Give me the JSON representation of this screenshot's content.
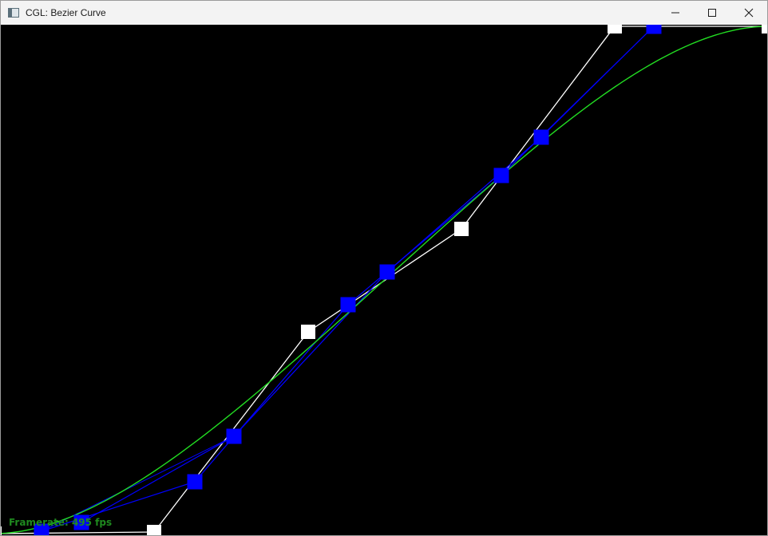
{
  "window": {
    "title": "CGL: Bezier Curve",
    "icon": "app-window-icon",
    "buttons": [
      "minimize-icon",
      "maximize-icon",
      "close-icon"
    ]
  },
  "scene": {
    "background": "#000000",
    "control_polygon_color": "#ffffff",
    "subdivision_color": "#0000ff",
    "curve_color": "#22dd22",
    "framerate_label": "Framerate: 495 fps"
  }
}
